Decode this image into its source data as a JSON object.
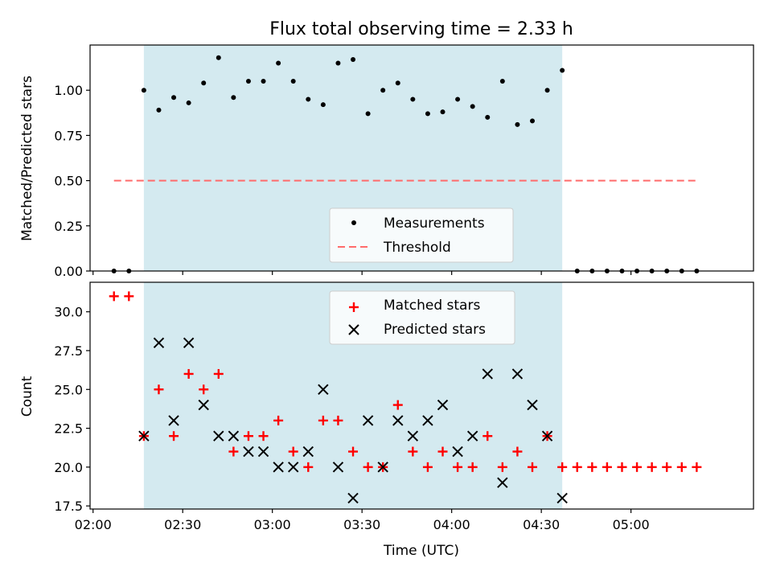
{
  "chart_data": [
    {
      "type": "scatter",
      "title": "Flux total observing time = 2.33 h",
      "ylabel": "Matched/Predicted stars",
      "xlabel": "",
      "ylim": [
        0.0,
        1.25
      ],
      "yticks": [
        "0.00",
        "0.25",
        "0.50",
        "0.75",
        "1.00"
      ],
      "shaded_region": {
        "start": "02:17",
        "end": "04:37"
      },
      "shade_color": "#d4eaf0",
      "series": [
        {
          "name": "Measurements",
          "marker": "dot",
          "color": "#000000",
          "x": [
            "02:07",
            "02:12",
            "02:17",
            "02:22",
            "02:27",
            "02:32",
            "02:37",
            "02:42",
            "02:47",
            "02:52",
            "02:57",
            "03:02",
            "03:07",
            "03:12",
            "03:17",
            "03:22",
            "03:27",
            "03:32",
            "03:37",
            "03:42",
            "03:47",
            "03:52",
            "03:57",
            "04:02",
            "04:07",
            "04:12",
            "04:17",
            "04:22",
            "04:27",
            "04:32",
            "04:37",
            "04:42",
            "04:47",
            "04:52",
            "04:57",
            "05:02",
            "05:07",
            "05:12",
            "05:17",
            "05:22"
          ],
          "values": [
            0,
            0,
            1.0,
            0.89,
            0.96,
            0.93,
            1.04,
            1.18,
            0.96,
            1.05,
            1.05,
            1.15,
            1.05,
            0.95,
            0.92,
            1.15,
            1.17,
            0.87,
            1.0,
            1.04,
            0.95,
            0.87,
            0.88,
            0.95,
            0.91,
            0.85,
            1.05,
            0.81,
            0.83,
            1.0,
            1.11,
            0,
            0,
            0,
            0,
            0,
            0,
            0,
            0,
            0
          ]
        }
      ],
      "threshold": {
        "name": "Threshold",
        "value": 0.5,
        "x_start": "02:07",
        "x_end": "05:22",
        "color": "#ff6b6b"
      },
      "legend": {
        "position": "lower-center",
        "entries": [
          "Measurements",
          "Threshold"
        ]
      },
      "grid": false
    },
    {
      "type": "scatter",
      "xlabel": "Time (UTC)",
      "ylabel": "Count",
      "ylim": [
        17.3,
        31.9
      ],
      "yticks": [
        "17.5",
        "20.0",
        "22.5",
        "25.0",
        "27.5",
        "30.0"
      ],
      "xticks": [
        "02:00",
        "02:30",
        "03:00",
        "03:30",
        "04:00",
        "04:30",
        "05:00"
      ],
      "xlim": [
        "01:59",
        "05:41"
      ],
      "shaded_region": {
        "start": "02:17",
        "end": "04:37"
      },
      "series": [
        {
          "name": "Matched stars",
          "marker": "plus",
          "color": "#ff0000",
          "x": [
            "02:07",
            "02:12",
            "02:17",
            "02:22",
            "02:27",
            "02:32",
            "02:37",
            "02:42",
            "02:47",
            "02:52",
            "02:57",
            "03:02",
            "03:07",
            "03:12",
            "03:17",
            "03:22",
            "03:27",
            "03:32",
            "03:37",
            "03:42",
            "03:47",
            "03:52",
            "03:57",
            "04:02",
            "04:07",
            "04:12",
            "04:17",
            "04:22",
            "04:27",
            "04:32",
            "04:37",
            "04:42",
            "04:47",
            "04:52",
            "04:57",
            "05:02",
            "05:07",
            "05:12",
            "05:17",
            "05:22"
          ],
          "values": [
            31,
            31,
            22,
            25,
            22,
            26,
            25,
            26,
            21,
            22,
            22,
            23,
            21,
            20,
            23,
            23,
            21,
            20,
            20,
            24,
            21,
            20,
            21,
            20,
            20,
            22,
            20,
            21,
            20,
            22,
            20,
            20,
            20,
            20,
            20,
            20,
            20,
            20,
            20,
            20
          ]
        },
        {
          "name": "Predicted stars",
          "marker": "x",
          "color": "#000000",
          "x": [
            "02:17",
            "02:22",
            "02:27",
            "02:32",
            "02:37",
            "02:42",
            "02:47",
            "02:52",
            "02:57",
            "03:02",
            "03:07",
            "03:12",
            "03:17",
            "03:22",
            "03:27",
            "03:32",
            "03:37",
            "03:42",
            "03:47",
            "03:52",
            "03:57",
            "04:02",
            "04:07",
            "04:12",
            "04:17",
            "04:22",
            "04:27",
            "04:32",
            "04:37"
          ],
          "values": [
            22,
            28,
            23,
            28,
            24,
            22,
            22,
            21,
            21,
            20,
            20,
            21,
            25,
            20,
            18,
            23,
            20,
            23,
            22,
            23,
            24,
            21,
            22,
            26,
            19,
            26,
            24,
            22,
            18
          ]
        }
      ],
      "legend": {
        "position": "upper-center",
        "entries": [
          "Matched stars",
          "Predicted stars"
        ]
      },
      "grid": false
    }
  ]
}
